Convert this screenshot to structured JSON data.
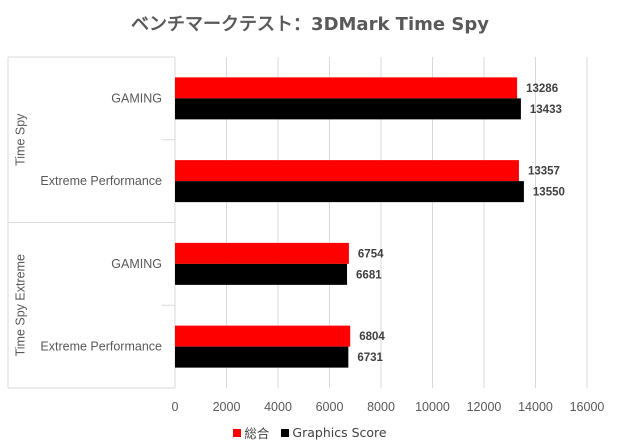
{
  "chart_data": {
    "type": "bar",
    "orientation": "horizontal",
    "title": "ベンチマークテスト：3DMark Time Spy",
    "groups": [
      {
        "label": "Time Spy",
        "categories": [
          "GAMING",
          "Extreme Performance"
        ]
      },
      {
        "label": "Time Spy Extreme",
        "categories": [
          "GAMING",
          "Extreme Performance"
        ]
      }
    ],
    "series": [
      {
        "name": "総合",
        "color": "#ff0000",
        "values": [
          13286,
          13357,
          6754,
          6804
        ]
      },
      {
        "name": "Graphics  Score",
        "color": "#000000",
        "values": [
          13433,
          13550,
          6681,
          6731
        ]
      }
    ],
    "xlim": [
      0,
      16000
    ],
    "xticks": [
      "0",
      "2000",
      "4000",
      "6000",
      "8000",
      "10000",
      "12000",
      "14000",
      "16000"
    ],
    "grid": true,
    "legend_position": "bottom"
  }
}
